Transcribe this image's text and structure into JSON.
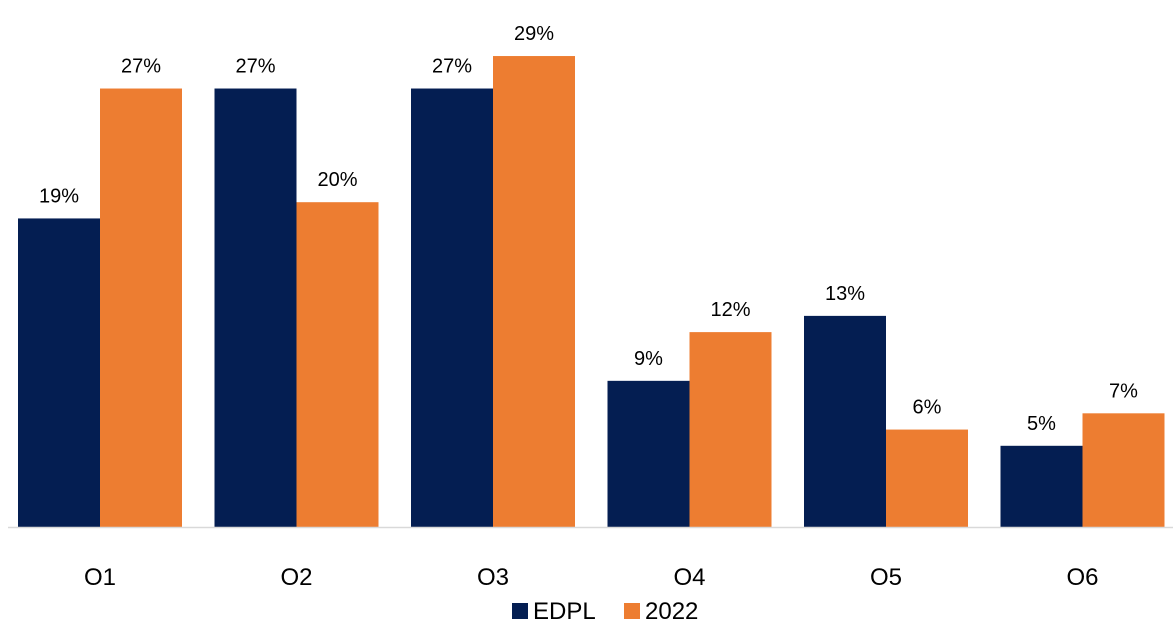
{
  "chart_data": {
    "type": "bar",
    "categories": [
      "O1",
      "O2",
      "O3",
      "O4",
      "O5",
      "O6"
    ],
    "series": [
      {
        "name": "EDPL",
        "color": "#041E52",
        "values": [
          19,
          27,
          27,
          9,
          13,
          5
        ],
        "labels": [
          "19%",
          "27%",
          "27%",
          "9%",
          "13%",
          "5%"
        ]
      },
      {
        "name": "2022",
        "color": "#ED7D31",
        "values": [
          27,
          20,
          29,
          12,
          6,
          7
        ],
        "labels": [
          "27%",
          "20%",
          "29%",
          "12%",
          "6%",
          "7%"
        ]
      }
    ],
    "value_unit": "%",
    "ylim": [
      0,
      29
    ],
    "grid": false,
    "legend_position": "bottom-center",
    "axis_line_color": "#D9D9D9"
  }
}
